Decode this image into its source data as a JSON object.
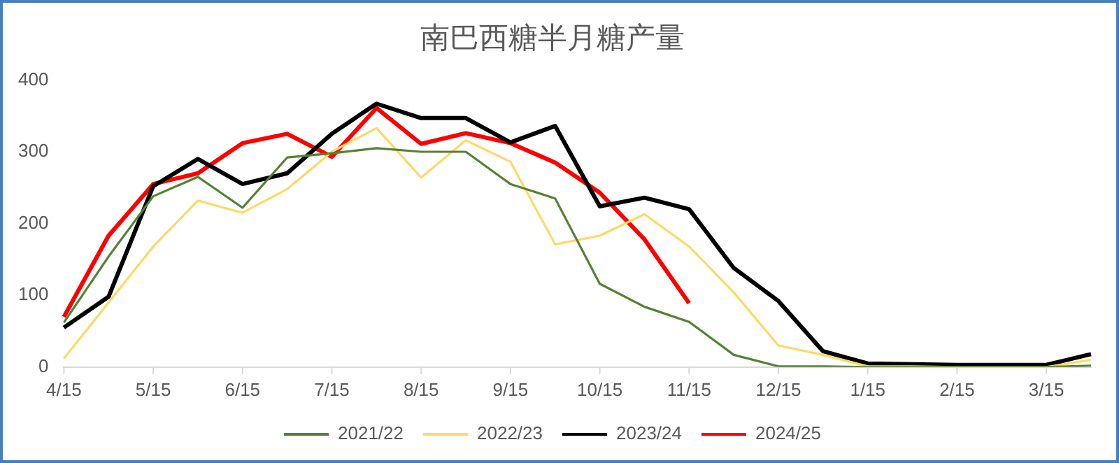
{
  "chart_data": {
    "type": "line",
    "title": "南巴西糖半月糖产量",
    "categories": [
      "4/15",
      null,
      "5/15",
      null,
      "6/15",
      null,
      "7/15",
      null,
      "8/15",
      null,
      "9/15",
      null,
      "10/15",
      null,
      "11/15",
      null,
      "12/15",
      null,
      "1/15",
      null,
      "2/15",
      null,
      "3/15",
      null
    ],
    "series": [
      {
        "name": "2021/22",
        "color": "#548235",
        "values": [
          62,
          154,
          238,
          265,
          222,
          292,
          298,
          305,
          300,
          300,
          255,
          235,
          116,
          84,
          63,
          17,
          1,
          1,
          0,
          0,
          0,
          0,
          0,
          2
        ]
      },
      {
        "name": "2022/23",
        "color": "#ffd966",
        "values": [
          12,
          90,
          168,
          232,
          215,
          248,
          300,
          333,
          264,
          316,
          286,
          171,
          183,
          213,
          168,
          104,
          30,
          17,
          1,
          1,
          0,
          0,
          0,
          10
        ]
      },
      {
        "name": "2023/24",
        "color": "#000000",
        "values": [
          55,
          98,
          252,
          290,
          255,
          270,
          325,
          367,
          347,
          347,
          313,
          336,
          224,
          236,
          220,
          138,
          92,
          22,
          5,
          4,
          3,
          3,
          3,
          18
        ]
      },
      {
        "name": "2024/25",
        "color": "#ff0000",
        "values": [
          70,
          183,
          255,
          270,
          312,
          325,
          293,
          361,
          311,
          326,
          312,
          285,
          243,
          178,
          89,
          null,
          null,
          null,
          null,
          null,
          null,
          null,
          null,
          null
        ]
      }
    ],
    "ylim": [
      0,
      400
    ],
    "yticks": [
      0,
      100,
      200,
      300,
      400
    ],
    "grid": false,
    "legend": "bottom",
    "marker": "none",
    "line_style": "solid"
  }
}
